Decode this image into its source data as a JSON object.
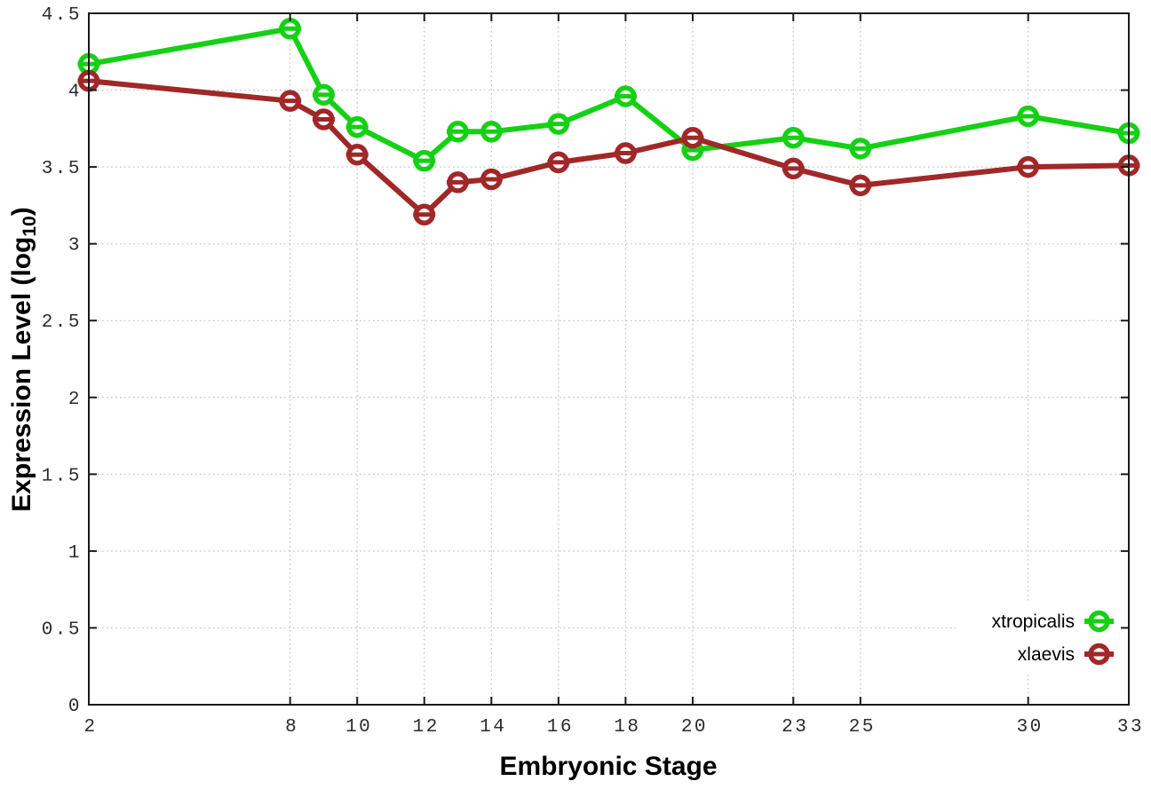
{
  "chart_data": {
    "type": "line",
    "title": "",
    "xlabel": "Embryonic Stage",
    "ylabel": "Expression Level (log10)",
    "ylabel_parts": {
      "pre": "Expression Level (log",
      "sub": "10",
      "post": ")"
    },
    "x": [
      2,
      8,
      9,
      10,
      12,
      13,
      14,
      16,
      18,
      20,
      23,
      25,
      30,
      33
    ],
    "series": [
      {
        "name": "xtropicalis",
        "color": "#15d015",
        "values": [
          4.17,
          4.4,
          3.97,
          3.76,
          3.54,
          3.73,
          3.73,
          3.78,
          3.96,
          3.61,
          3.69,
          3.62,
          3.83,
          3.72
        ]
      },
      {
        "name": "xlaevis",
        "color": "#a02828",
        "values": [
          4.06,
          3.93,
          3.81,
          3.58,
          3.19,
          3.4,
          3.42,
          3.53,
          3.59,
          3.69,
          3.49,
          3.38,
          3.5,
          3.51
        ]
      }
    ],
    "x_tick_values": [
      2,
      8,
      10,
      12,
      14,
      16,
      18,
      20,
      23,
      25,
      30,
      33
    ],
    "x_tick_labels": [
      "2",
      "8",
      "10",
      "12",
      "14",
      "16",
      "18",
      "20",
      "23",
      "25",
      "30",
      "33"
    ],
    "y_tick_values": [
      0,
      0.5,
      1,
      1.5,
      2,
      2.5,
      3,
      3.5,
      4,
      4.5
    ],
    "y_tick_labels": [
      "0",
      "0.5",
      "1",
      "1.5",
      "2",
      "2.5",
      "3",
      "3.5",
      "4",
      "4.5"
    ],
    "xlim": [
      2,
      33
    ],
    "ylim": [
      0,
      4.5
    ],
    "grid": true,
    "grid_style": "dotted",
    "legend_position": "inside-bottom-right",
    "marker": "open-circle-with-horizontal-bar",
    "colors": {
      "grid": "#bdbdbd",
      "axis": "#1a1a1a",
      "background": "#ffffff",
      "tick_label": "#2b2b2b"
    }
  }
}
